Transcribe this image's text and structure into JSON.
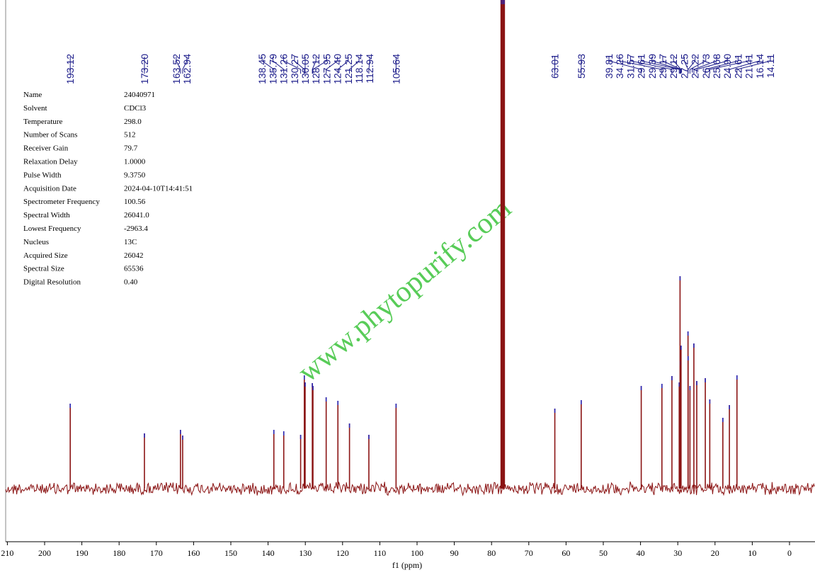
{
  "chart_data": {
    "type": "nmr",
    "x_label": "f1 (ppm)",
    "watermark": "www.phytopurify.com",
    "xlim": [
      210.4,
      -5.3
    ],
    "xticks": [
      210,
      200,
      190,
      180,
      170,
      160,
      150,
      140,
      130,
      120,
      110,
      100,
      90,
      80,
      70,
      60,
      50,
      40,
      30,
      20,
      10,
      0
    ],
    "ylim": [
      -75,
      690
    ],
    "peak_color": "#8b1414",
    "tip_color": "#2a2ab8",
    "label_color": "#1c1c8a",
    "peaks": {
      "x": [
        193.12,
        173.2,
        163.52,
        162.94,
        138.45,
        135.79,
        131.26,
        130.27,
        130.05,
        128.12,
        127.95,
        124.4,
        121.25,
        118.14,
        112.94,
        105.64,
        77.32,
        77.0,
        76.68,
        63.01,
        55.93,
        39.81,
        34.26,
        31.57,
        29.61,
        29.39,
        29.17,
        29.12,
        27.25,
        27.22,
        26.73,
        25.68,
        24.9,
        22.61,
        21.41,
        17.9,
        16.14,
        14.11
      ],
      "values": [
        120,
        78,
        83,
        75,
        83,
        81,
        76,
        160,
        150,
        149,
        145,
        129,
        124,
        92,
        76,
        120,
        690,
        690,
        690,
        113,
        125,
        145,
        148,
        159,
        150,
        300,
        180,
        202,
        222,
        187,
        145,
        205,
        152,
        156,
        126,
        100,
        118,
        160
      ],
      "labels": [
        "193.12",
        "173.20",
        "163.52",
        "162.94",
        "138.45",
        "135.79",
        "131.26",
        "130.27",
        "130.05",
        "128.12",
        "127.95",
        "124.40",
        "121.25",
        "118.14",
        "112.94",
        "105.64",
        null,
        null,
        null,
        "63.01",
        "55.93",
        "39.81",
        "34.26",
        "31.57",
        "29.61",
        "29.39",
        "29.17",
        "29.12",
        "27.25",
        "27.22",
        "26.73",
        "25.68",
        "24.90",
        "22.61",
        "21.41",
        null,
        "16.14",
        "14.11"
      ]
    }
  },
  "parameters": {
    "rows": [
      [
        "Name",
        "24040971"
      ],
      [
        "Solvent",
        "CDCl3"
      ],
      [
        "Temperature",
        "298.0"
      ],
      [
        "Number of Scans",
        "512"
      ],
      [
        "Receiver Gain",
        "79.7"
      ],
      [
        "Relaxation Delay",
        "1.0000"
      ],
      [
        "Pulse Width",
        "9.3750"
      ],
      [
        "Acquisition Date",
        "2024-04-10T14:41:51"
      ],
      [
        "Spectrometer Frequency",
        "100.56"
      ],
      [
        "Spectral Width",
        "26041.0"
      ],
      [
        "Lowest Frequency",
        "-2963.4"
      ],
      [
        "Nucleus",
        "13C"
      ],
      [
        "Acquired Size",
        "26042"
      ],
      [
        "Spectral Size",
        "65536"
      ],
      [
        "Digital Resolution",
        "0.40"
      ]
    ]
  }
}
